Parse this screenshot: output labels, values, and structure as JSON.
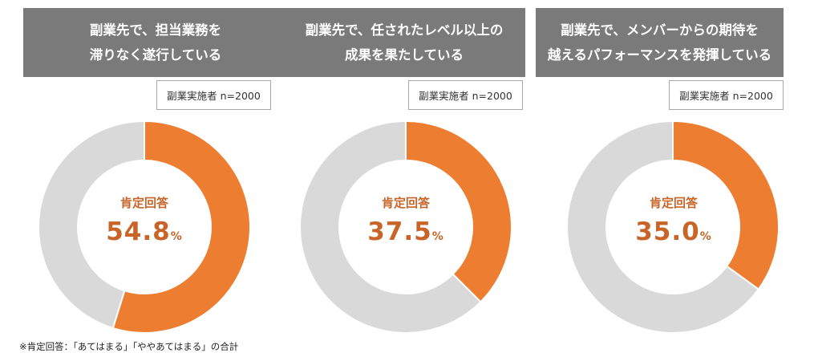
{
  "panels": [
    {
      "title_line1": "副業先で、担当業務を",
      "title_line2": "滞りなく遂行している",
      "n_label": "副業実施者 n=2000",
      "center_label": "肯定回答",
      "value_text": "54.8",
      "unit": "%"
    },
    {
      "title_line1": "副業先で、任されたレベル以上の",
      "title_line2": "成果を果たしている",
      "n_label": "副業実施者 n=2000",
      "center_label": "肯定回答",
      "value_text": "37.5",
      "unit": "%"
    },
    {
      "title_line1": "副業先で、メンバーからの期待を",
      "title_line2": "越えるパフォーマンスを発揮している",
      "n_label": "副業実施者 n=2000",
      "center_label": "肯定回答",
      "value_text": "35.0",
      "unit": "%"
    }
  ],
  "footnote": "※肯定回答：「あてはまる」「ややあてはまる」の合計",
  "colors": {
    "positive": "#ed7d31",
    "remainder": "#d9d9d9",
    "header_bg": "#7a7a7a",
    "value_text": "#c86428"
  },
  "chart_data": [
    {
      "type": "pie",
      "title": "副業先で、担当業務を滞りなく遂行している",
      "categories": [
        "肯定回答",
        ""
      ],
      "values": [
        54.8,
        45.2
      ]
    },
    {
      "type": "pie",
      "title": "副業先で、任されたレベル以上の成果を果たしている",
      "categories": [
        "肯定回答",
        ""
      ],
      "values": [
        37.5,
        62.5
      ]
    },
    {
      "type": "pie",
      "title": "副業先で、メンバーからの期待を越えるパフォーマンスを発揮している",
      "categories": [
        "肯定回答",
        ""
      ],
      "values": [
        35.0,
        65.0
      ]
    }
  ]
}
